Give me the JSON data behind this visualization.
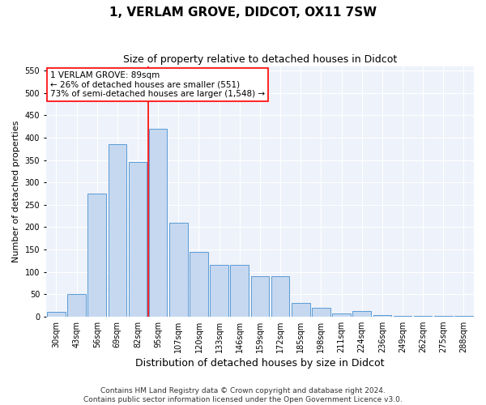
{
  "title1": "1, VERLAM GROVE, DIDCOT, OX11 7SW",
  "title2": "Size of property relative to detached houses in Didcot",
  "xlabel": "Distribution of detached houses by size in Didcot",
  "ylabel": "Number of detached properties",
  "categories": [
    "30sqm",
    "43sqm",
    "56sqm",
    "69sqm",
    "82sqm",
    "95sqm",
    "107sqm",
    "120sqm",
    "133sqm",
    "146sqm",
    "159sqm",
    "172sqm",
    "185sqm",
    "198sqm",
    "211sqm",
    "224sqm",
    "236sqm",
    "249sqm",
    "262sqm",
    "275sqm",
    "288sqm"
  ],
  "values": [
    10,
    50,
    275,
    385,
    345,
    420,
    210,
    145,
    116,
    116,
    90,
    90,
    30,
    20,
    7,
    12,
    3,
    2,
    1,
    1,
    1
  ],
  "bar_color": "#c5d8f0",
  "bar_edge_color": "#5b9bd5",
  "vline_color": "red",
  "annotation_text": "1 VERLAM GROVE: 89sqm\n← 26% of detached houses are smaller (551)\n73% of semi-detached houses are larger (1,548) →",
  "annotation_box_color": "white",
  "annotation_box_edge_color": "red",
  "ylim": [
    0,
    560
  ],
  "yticks": [
    0,
    50,
    100,
    150,
    200,
    250,
    300,
    350,
    400,
    450,
    500,
    550
  ],
  "footer1": "Contains HM Land Registry data © Crown copyright and database right 2024.",
  "footer2": "Contains public sector information licensed under the Open Government Licence v3.0.",
  "bg_color": "#eef2fa",
  "grid_color": "#ffffff",
  "title1_fontsize": 11,
  "title2_fontsize": 9,
  "xlabel_fontsize": 9,
  "ylabel_fontsize": 8,
  "tick_fontsize": 7,
  "footer_fontsize": 6.5,
  "annot_fontsize": 7.5
}
